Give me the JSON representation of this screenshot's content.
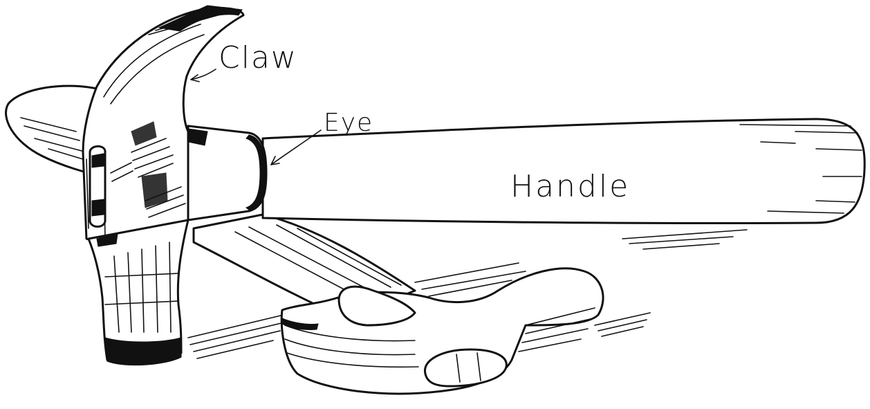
{
  "labels": {
    "claw": "Claw",
    "eye": "Eye",
    "handle": "Handle"
  },
  "colors": {
    "ink": "#111111",
    "paper": "#ffffff"
  }
}
